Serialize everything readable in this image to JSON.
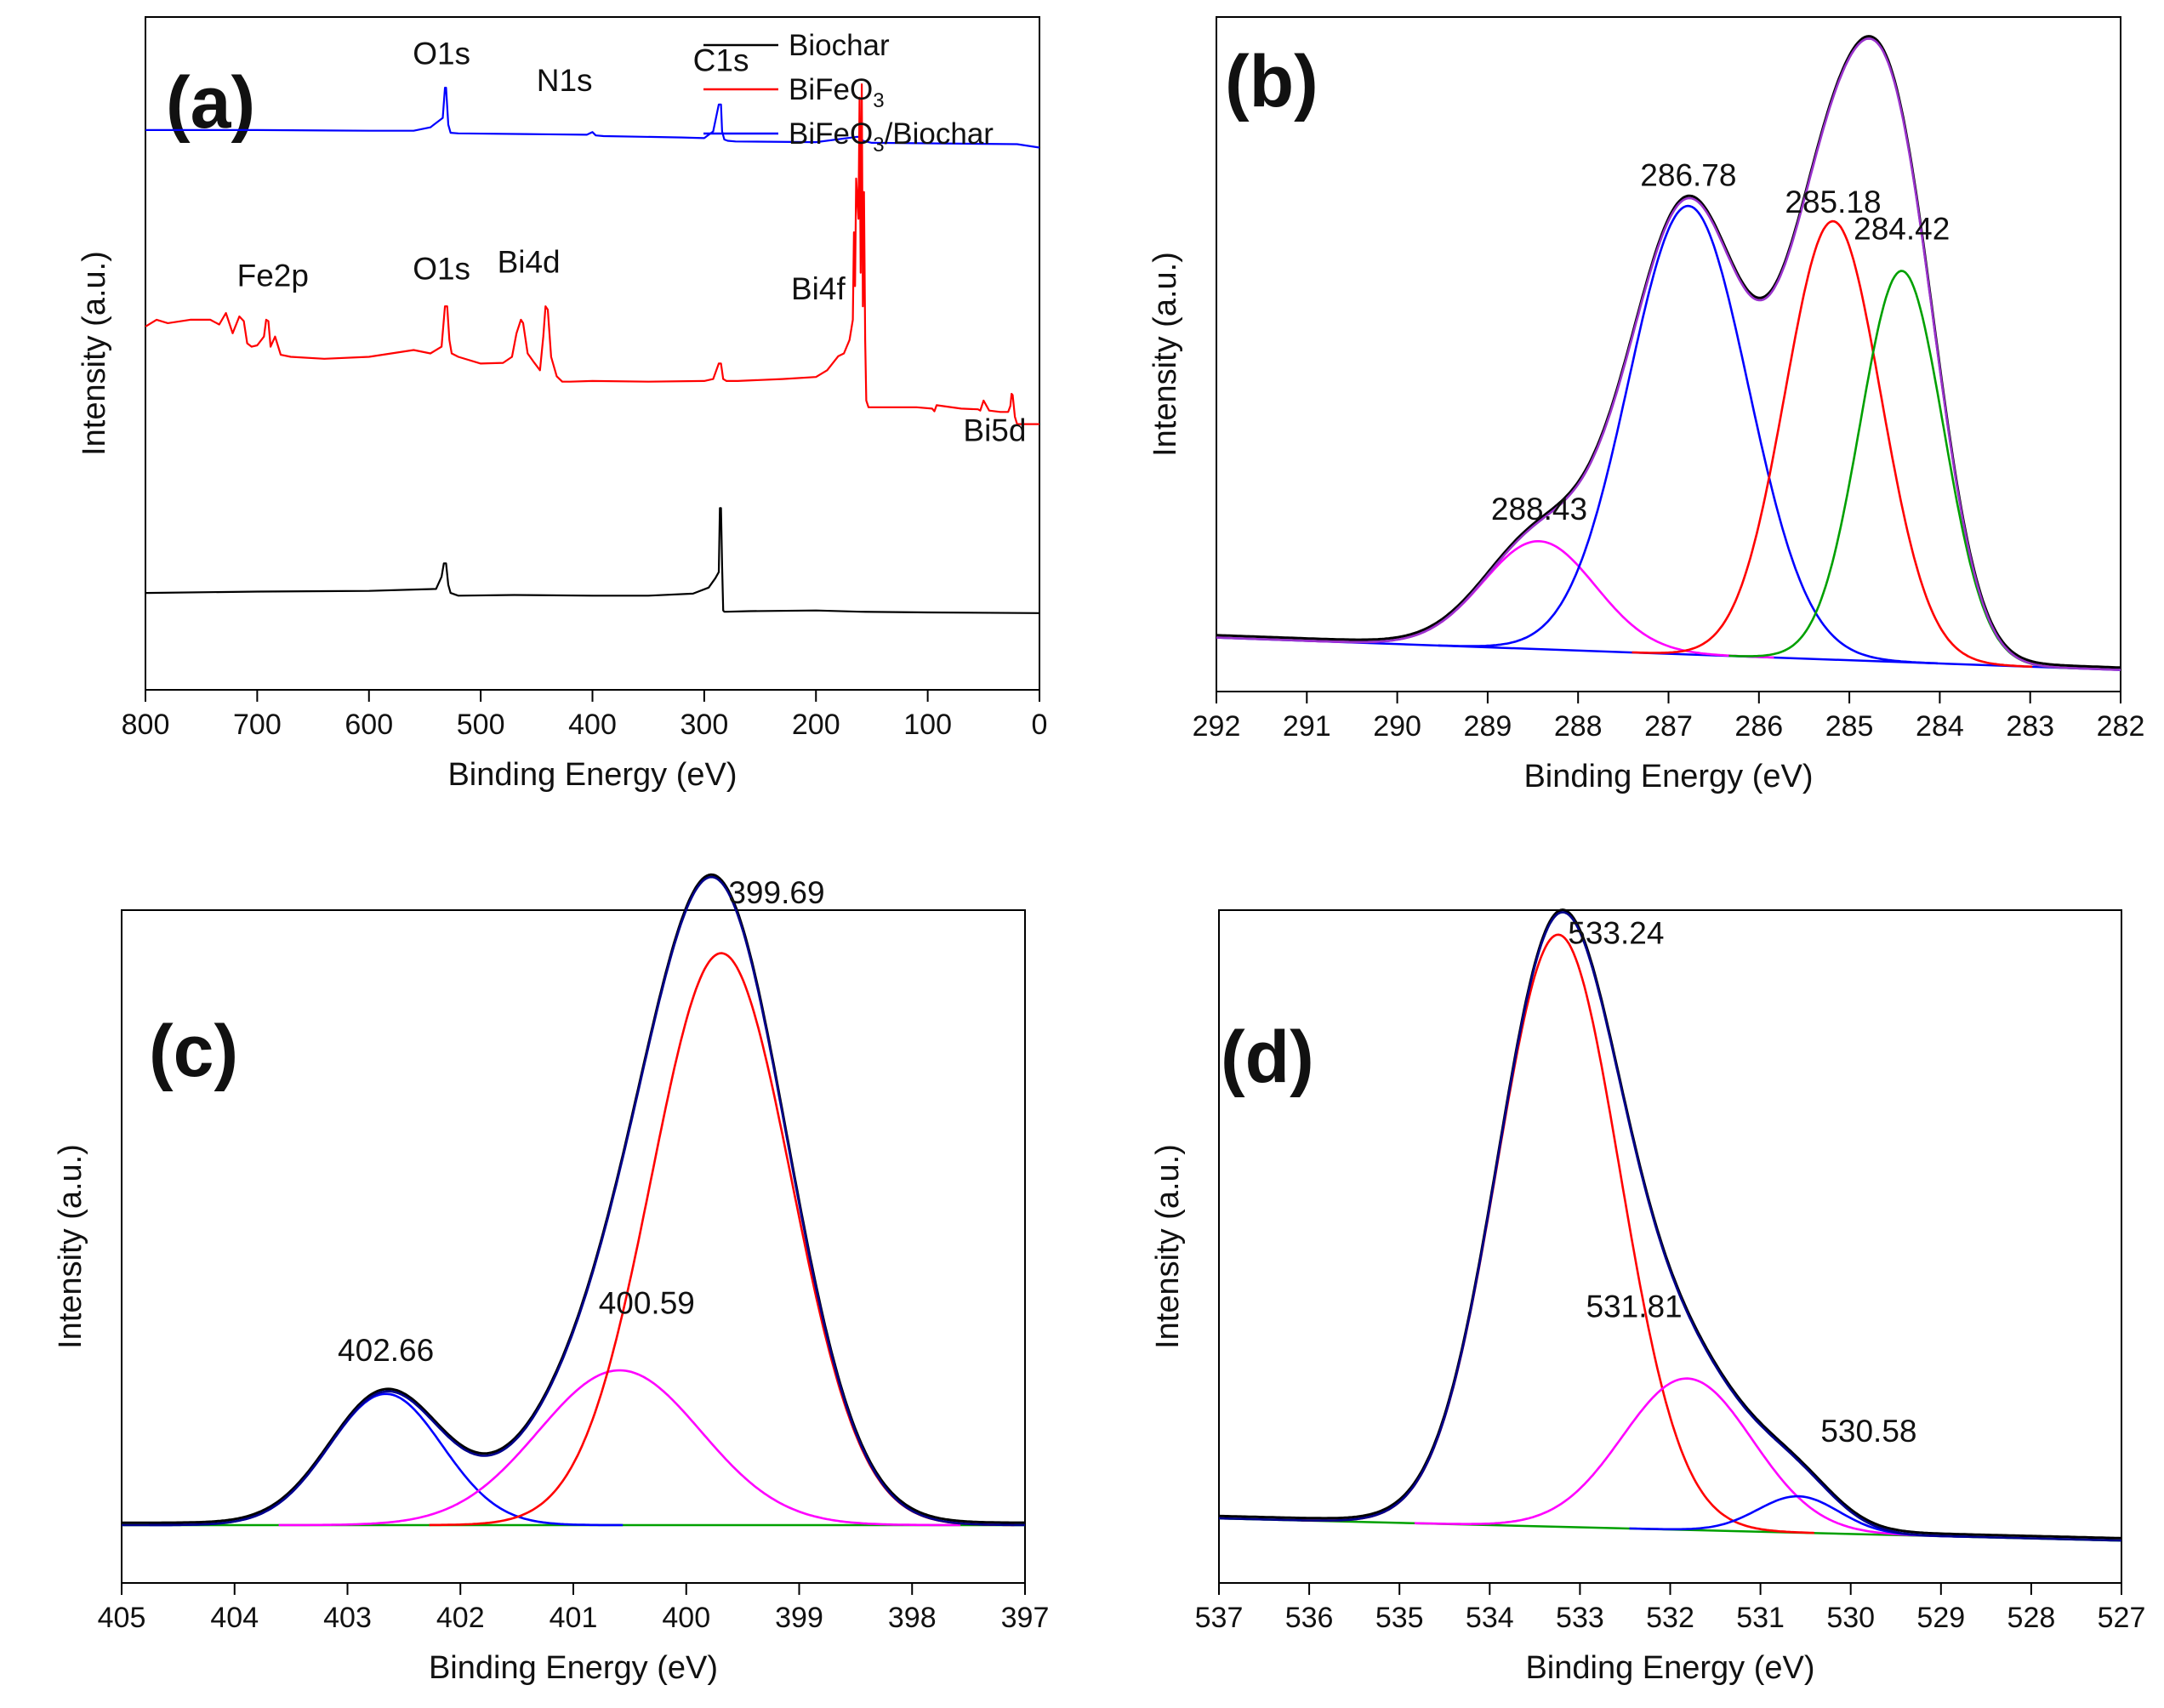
{
  "chart_data": [
    {
      "panel": "(a)",
      "type": "line",
      "xlabel": "Binding Energy (eV)",
      "ylabel": "Intensity (a.u.)",
      "xlim": [
        800,
        0
      ],
      "xticks": [
        800,
        700,
        600,
        500,
        400,
        300,
        200,
        100,
        0
      ],
      "ylim": [
        0,
        100
      ],
      "legend": {
        "position": "top-right",
        "entries": [
          {
            "name": "Biochar",
            "color": "#000000"
          },
          {
            "name": "BiFeO",
            "sub": "3",
            "color": "#ff0000"
          },
          {
            "name": "BiFeO",
            "sub": "3",
            "suffix": "/Biochar",
            "color": "#0000ff"
          }
        ]
      },
      "series": [
        {
          "name": "BiFeO3/Biochar",
          "color": "#0000ff",
          "x": [
            800,
            700,
            600,
            560,
            545,
            534,
            532,
            531,
            529,
            527,
            520,
            460,
            405,
            400,
            397,
            390,
            320,
            300,
            292,
            287,
            285,
            284,
            282,
            279,
            272,
            200,
            163,
            160,
            158,
            150,
            20,
            0
          ],
          "y": [
            83.2,
            83.2,
            83.1,
            83.1,
            83.6,
            85,
            89.5,
            89.5,
            84,
            82.8,
            82.7,
            82.6,
            82.5,
            82.9,
            82.4,
            82.3,
            82.1,
            82,
            83,
            87,
            87,
            83,
            81.8,
            81.6,
            81.5,
            81.4,
            82.2,
            82.1,
            81.6,
            81.3,
            81.1,
            80.6
          ]
        },
        {
          "name": "BiFeO3",
          "color": "#ff0000",
          "x": [
            800,
            790,
            780,
            760,
            742,
            734,
            728,
            722,
            716,
            712,
            709,
            705,
            700,
            694,
            692,
            690,
            688,
            684,
            679,
            670,
            640,
            600,
            560,
            545,
            535,
            532,
            530,
            528,
            526,
            520,
            500,
            480,
            472,
            468,
            464,
            462,
            458,
            452,
            447,
            444,
            442,
            440,
            437,
            432,
            427,
            420,
            400,
            350,
            300,
            292,
            287,
            285,
            283,
            280,
            270,
            230,
            200,
            190,
            180,
            175,
            170,
            167,
            166,
            165,
            164,
            162,
            161,
            160,
            159,
            158,
            157,
            156,
            155,
            153,
            140,
            110,
            96,
            94,
            92,
            70,
            55,
            53,
            50,
            45,
            35,
            28,
            26,
            25,
            24,
            22,
            20,
            10,
            0
          ],
          "y": [
            54,
            55,
            54.5,
            55,
            55,
            54.3,
            56,
            53,
            55.5,
            54.8,
            51.5,
            51,
            51.2,
            52.5,
            55,
            54.8,
            51,
            52.5,
            49.8,
            49.5,
            49.2,
            49.5,
            50.5,
            50,
            51,
            57,
            57,
            52,
            50,
            49.5,
            48.5,
            48.6,
            49.5,
            53,
            55,
            54.5,
            50,
            48.6,
            47.5,
            52.5,
            57,
            56.5,
            49.5,
            46.6,
            45.8,
            45.8,
            45.9,
            45.8,
            45.9,
            46.2,
            48.5,
            48.5,
            46.2,
            45.9,
            45.9,
            46.2,
            46.5,
            47.5,
            49.6,
            50,
            52,
            55,
            68,
            60,
            76,
            70,
            88,
            62,
            90,
            57,
            74,
            52,
            43,
            42,
            42,
            42,
            41.8,
            41.4,
            42.3,
            41.8,
            41.7,
            41.5,
            43,
            41.5,
            41.3,
            41.3,
            42.2,
            44,
            43.8,
            40.6,
            39.5,
            39.5,
            39.5
          ]
        },
        {
          "name": "Biochar",
          "color": "#000000",
          "x": [
            800,
            700,
            600,
            560,
            540,
            535,
            533,
            531,
            529,
            527,
            520,
            470,
            400,
            350,
            310,
            296,
            290,
            287,
            286,
            285,
            284,
            283,
            282,
            280,
            260,
            200,
            160,
            100,
            0
          ],
          "y": [
            14.4,
            14.6,
            14.7,
            14.9,
            15,
            16.8,
            18.8,
            18.8,
            15.6,
            14.4,
            14,
            14.1,
            14,
            14,
            14.3,
            15.2,
            16.6,
            17.5,
            27,
            27,
            18.5,
            11.8,
            11.6,
            11.6,
            11.7,
            11.8,
            11.6,
            11.5,
            11.4
          ]
        }
      ],
      "annotations": [
        {
          "text": "O1s",
          "x": 535,
          "y": 93
        },
        {
          "text": "N1s",
          "x": 425,
          "y": 89
        },
        {
          "text": "C1s",
          "x": 285,
          "y": 92
        },
        {
          "text": "Fe2p",
          "x": 686,
          "y": 60
        },
        {
          "text": "O1s",
          "x": 535,
          "y": 61
        },
        {
          "text": "Bi4d",
          "x": 457,
          "y": 62
        },
        {
          "text": "Bi4f",
          "x": 198,
          "y": 58
        },
        {
          "text": "Bi5d",
          "x": 40,
          "y": 37
        }
      ]
    },
    {
      "panel": "(b)",
      "type": "line",
      "xlabel": "Binding Energy (eV)",
      "ylabel": "Intensity (a.u.)",
      "xlim": [
        292,
        282
      ],
      "xticks": [
        292,
        291,
        290,
        289,
        288,
        287,
        286,
        285,
        284,
        283,
        282
      ],
      "ylim": [
        0,
        100
      ],
      "baseline": {
        "x": [
          292,
          282
        ],
        "y": [
          8,
          3.2
        ]
      },
      "peaks": [
        {
          "center": 288.43,
          "height": 16,
          "sigma": 0.62,
          "color": "#ff00ff"
        },
        {
          "center": 286.78,
          "height": 66.5,
          "sigma": 0.66,
          "color": "#0000ff"
        },
        {
          "center": 285.18,
          "height": 65,
          "sigma": 0.53,
          "color": "#ff0000"
        },
        {
          "center": 284.42,
          "height": 58,
          "sigma": 0.46,
          "color": "#00a000"
        }
      ],
      "envelope_colors": [
        "#000000",
        "#9932cc"
      ],
      "annotations": [
        {
          "text": "288.43",
          "x": 288.43,
          "y": 25.5
        },
        {
          "text": "286.78",
          "x": 286.78,
          "y": 75
        },
        {
          "text": "285.18",
          "x": 285.18,
          "y": 71
        },
        {
          "text": "284.42",
          "x": 284.42,
          "y": 67
        }
      ]
    },
    {
      "panel": "(c)",
      "type": "line",
      "xlabel": "Binding Energy (eV)",
      "ylabel": "Intensity (a.u.)",
      "xlim": [
        405,
        397
      ],
      "xticks": [
        405,
        404,
        403,
        402,
        401,
        400,
        399,
        398,
        397
      ],
      "ylim": [
        0,
        100
      ],
      "baseline": {
        "x": [
          405,
          397
        ],
        "y": [
          8.6,
          8.6
        ]
      },
      "peaks": [
        {
          "center": 402.66,
          "height": 19.5,
          "sigma": 0.5,
          "color": "#0000ff"
        },
        {
          "center": 400.59,
          "height": 23,
          "sigma": 0.72,
          "color": "#ff00ff"
        },
        {
          "center": 399.69,
          "height": 85,
          "sigma": 0.62,
          "color": "#ff0000"
        }
      ],
      "envelope_colors": [
        "#000000",
        "#00008b"
      ],
      "annotations": [
        {
          "text": "402.66",
          "x": 402.66,
          "y": 33
        },
        {
          "text": "400.59",
          "x": 400.35,
          "y": 40
        },
        {
          "text": "399.69",
          "x": 399.2,
          "y": 101
        }
      ]
    },
    {
      "panel": "(d)",
      "type": "line",
      "xlabel": "Binding Energy (eV)",
      "ylabel": "Intensity (a.u.)",
      "xlim": [
        537,
        527
      ],
      "xticks": [
        537,
        536,
        535,
        534,
        533,
        532,
        531,
        530,
        529,
        528,
        527
      ],
      "ylim": [
        0,
        100
      ],
      "baseline": {
        "x": [
          537,
          527
        ],
        "y": [
          9.6,
          6.3
        ]
      },
      "peaks": [
        {
          "center": 533.24,
          "height": 88,
          "sigma": 0.68,
          "color": "#ff0000"
        },
        {
          "center": 531.81,
          "height": 22.5,
          "sigma": 0.72,
          "color": "#ff00ff"
        },
        {
          "center": 530.58,
          "height": 5.4,
          "sigma": 0.45,
          "color": "#0000ff"
        }
      ],
      "envelope_colors": [
        "#000000",
        "#00008b"
      ],
      "annotations": [
        {
          "text": "533.24",
          "x": 532.6,
          "y": 95
        },
        {
          "text": "531.81",
          "x": 532.4,
          "y": 39.5
        },
        {
          "text": "530.58",
          "x": 529.8,
          "y": 21
        }
      ]
    }
  ]
}
